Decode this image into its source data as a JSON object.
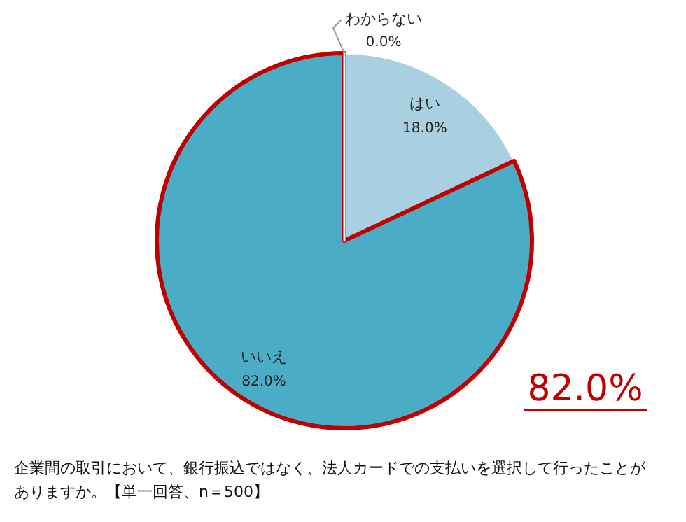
{
  "chart_data": {
    "type": "pie",
    "categories": [
      "はい",
      "いいえ",
      "わからない"
    ],
    "values": [
      18,
      82,
      0
    ],
    "value_labels": [
      "18.0%",
      "82.0%",
      "0.0%"
    ],
    "colors": [
      "#a9d0e0",
      "#4bacc6",
      "#4bacc6"
    ],
    "annotations": [
      "82.0%",
      "企業間の取引において、銀行振込ではなく、法人カードでの支払いを選択して行ったことがありますか。【単一回答、n＝500】"
    ]
  }
}
